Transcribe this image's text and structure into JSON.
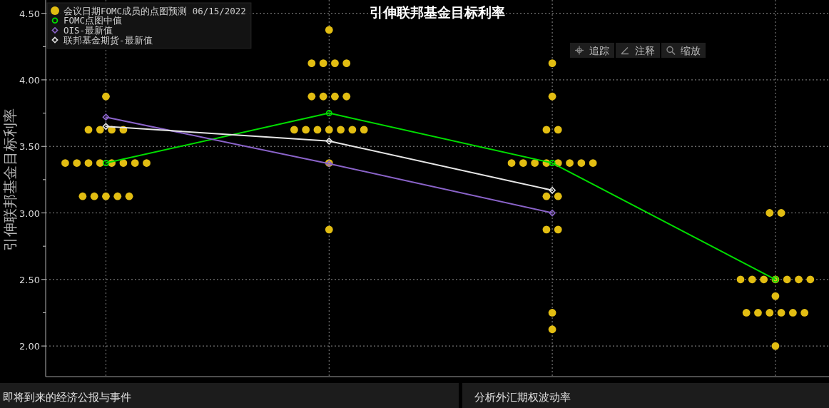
{
  "chart_data": {
    "type": "scatter",
    "title": "引伸联邦基金目标利率",
    "ylabel": "引伸联邦基金目标利率",
    "categories": [
      null,
      null,
      null,
      null
    ],
    "series": [
      {
        "name": "会议日期FOMC成员的点图预测 06/15/2022",
        "type": "scatter",
        "marker": "circle",
        "color": "#e2bd12",
        "values": [
          3.875,
          4.375,
          4.125,
          3.0
        ]
      },
      {
        "name": "FOMC点图中值",
        "type": "line",
        "marker": "circle",
        "color": "#00dd00",
        "values": [
          3.375,
          3.75,
          3.375,
          2.5
        ]
      },
      {
        "name": "OIS-最新值",
        "type": "line",
        "marker": "diamond",
        "color": "#8a63c9",
        "values": [
          3.72,
          3.37,
          3.0,
          null
        ]
      },
      {
        "name": "联邦基金期货-最新值",
        "type": "line",
        "marker": "diamond",
        "color": "#e6e6e6",
        "values": [
          3.65,
          3.54,
          3.17,
          null
        ]
      },
      {
        "marker": "circle",
        "color": "#e2bd12",
        "values": [
          3.625,
          4.125,
          3.875,
          3.0
        ]
      },
      {
        "marker": "circle",
        "color": "#e2bd12",
        "values": [
          3.625,
          4.125,
          3.625,
          2.5
        ]
      },
      {
        "marker": "circle",
        "color": "#e2bd12",
        "values": [
          3.625,
          4.125,
          3.625,
          2.5
        ]
      },
      {
        "marker": "circle",
        "color": "#e2bd12",
        "values": [
          3.625,
          4.125,
          3.375,
          2.5
        ]
      },
      {
        "marker": "circle",
        "color": "#e2bd12",
        "values": [
          3.375,
          3.875,
          3.375,
          2.5
        ]
      },
      {
        "marker": "circle",
        "color": "#e2bd12",
        "values": [
          3.375,
          3.875,
          3.375,
          2.5
        ]
      },
      {
        "marker": "circle",
        "color": "#e2bd12",
        "values": [
          3.375,
          3.875,
          3.375,
          2.5
        ]
      },
      {
        "marker": "circle",
        "color": "#e2bd12",
        "values": [
          3.375,
          3.875,
          3.375,
          2.5
        ]
      },
      {
        "marker": "circle",
        "color": "#e2bd12",
        "values": [
          3.375,
          3.625,
          3.375,
          2.375
        ]
      },
      {
        "marker": "circle",
        "color": "#e2bd12",
        "values": [
          3.375,
          3.625,
          3.375,
          2.25
        ]
      },
      {
        "marker": "circle",
        "color": "#e2bd12",
        "values": [
          3.375,
          3.625,
          3.375,
          2.25
        ]
      },
      {
        "marker": "circle",
        "color": "#e2bd12",
        "values": [
          3.375,
          3.625,
          3.125,
          2.25
        ]
      },
      {
        "marker": "circle",
        "color": "#e2bd12",
        "values": [
          3.125,
          3.625,
          3.125,
          2.25
        ]
      },
      {
        "marker": "circle",
        "color": "#e2bd12",
        "values": [
          3.125,
          3.625,
          2.875,
          2.25
        ]
      },
      {
        "marker": "circle",
        "color": "#e2bd12",
        "values": [
          3.125,
          3.625,
          2.875,
          2.25
        ]
      },
      {
        "marker": "circle",
        "color": "#e2bd12",
        "values": [
          3.125,
          3.375,
          2.25,
          2.0
        ]
      },
      {
        "marker": "circle",
        "color": "#e2bd12",
        "values": [
          3.125,
          2.875,
          2.125,
          null
        ]
      }
    ],
    "ylim": [
      1.77,
      4.6
    ],
    "yticks": [
      {
        "value": 2,
        "label": "2.00"
      },
      {
        "value": 2.25,
        "label": null
      },
      {
        "value": 2.5,
        "label": "2.50"
      },
      {
        "value": 2.75,
        "label": null
      },
      {
        "value": 3,
        "label": "3.00"
      },
      {
        "value": 3.25,
        "label": null
      },
      {
        "value": 3.5,
        "label": "3.50"
      },
      {
        "value": 3.75,
        "label": null
      },
      {
        "value": 4,
        "label": "4.00"
      },
      {
        "value": 4.25,
        "label": null
      },
      {
        "value": 4.5,
        "label": "4.50"
      }
    ],
    "grid": true,
    "legend": "top left",
    "annotations": [
      "追踪",
      "注释",
      "缩放",
      "即将到来的经济公报与事件",
      "分析外汇期权波动率"
    ]
  }
}
